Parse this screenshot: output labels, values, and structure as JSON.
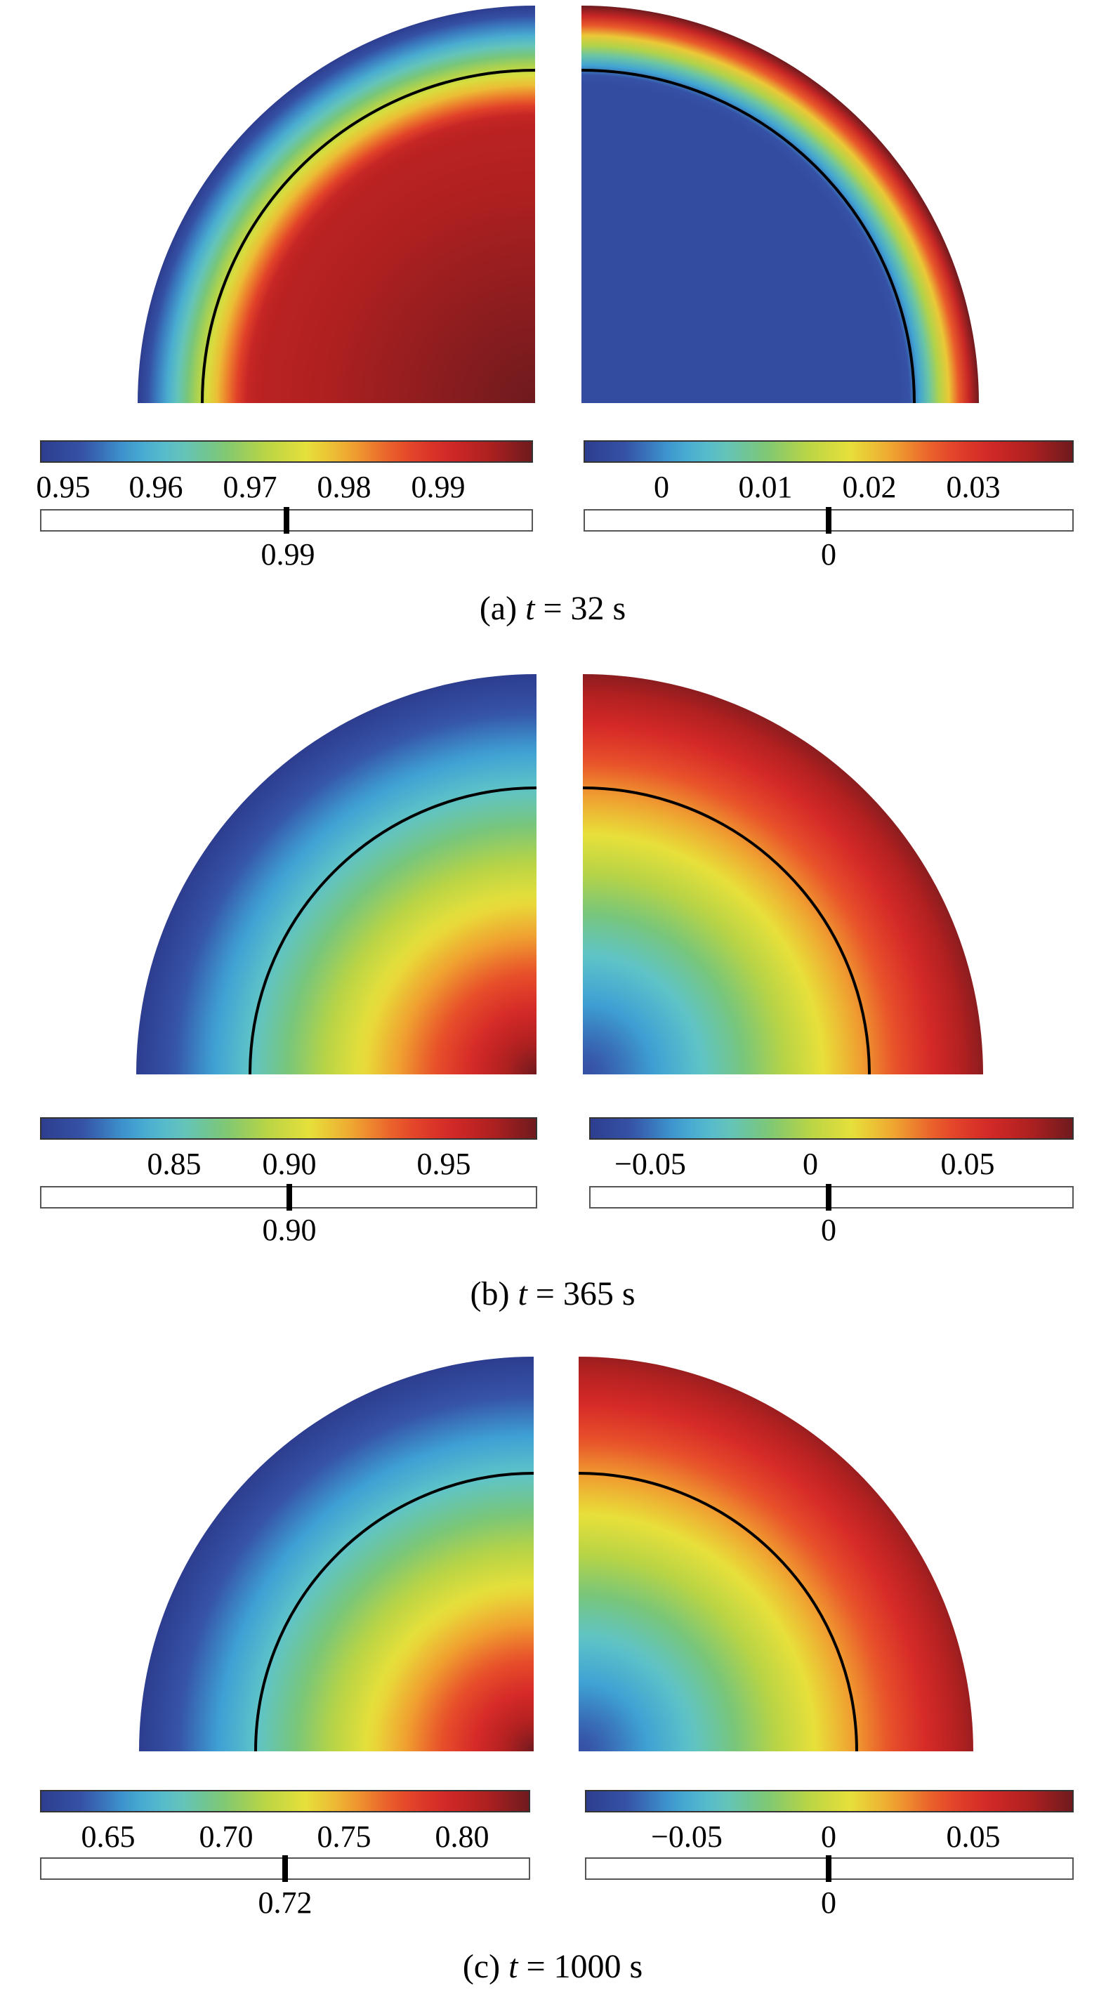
{
  "colormap": [
    "#2d3d8f",
    "#3654a8",
    "#3ea0d4",
    "#5fc4c8",
    "#78c67a",
    "#b8d445",
    "#e8e03a",
    "#f0a030",
    "#e8502a",
    "#d62a28",
    "#b02020",
    "#6e1a1e"
  ],
  "panels": [
    {
      "caption_prefix": "(a) ",
      "caption_var": "t",
      "caption_value": " = 32 s",
      "left": {
        "ticks": [
          "0.95",
          "0.96",
          "0.97",
          "0.98",
          "0.99"
        ],
        "slider_label": "0.99"
      },
      "right": {
        "ticks": [
          "0",
          "0.01",
          "0.02",
          "0.03"
        ],
        "slider_label": "0"
      }
    },
    {
      "caption_prefix": "(b) ",
      "caption_var": "t",
      "caption_value": " = 365 s",
      "left": {
        "ticks": [
          "0.85",
          "0.90",
          "0.95"
        ],
        "slider_label": "0.90"
      },
      "right": {
        "ticks": [
          "−0.05",
          "0",
          "0.05"
        ],
        "slider_label": "0"
      }
    },
    {
      "caption_prefix": "(c) ",
      "caption_var": "t",
      "caption_value": " = 1000 s",
      "left": {
        "ticks": [
          "0.65",
          "0.70",
          "0.75",
          "0.80"
        ],
        "slider_label": "0.72"
      },
      "right": {
        "ticks": [
          "−0.05",
          "0",
          "0.05"
        ],
        "slider_label": "0"
      }
    }
  ]
}
